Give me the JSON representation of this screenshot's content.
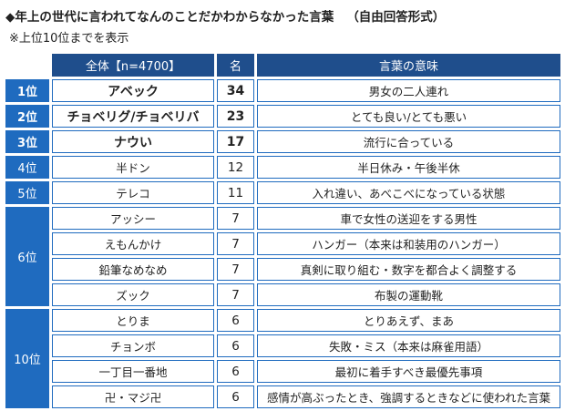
{
  "title": "◆年上の世代に言われてなんのことだかわからなかった言葉",
  "title_note": "（自由回答形式）",
  "subtitle": "※上位10位までを表示",
  "headers": {
    "word": "全体【n=4700】",
    "count": "名",
    "meaning": "言葉の意味"
  },
  "rows": [
    {
      "rank": "1位",
      "word": "アベック",
      "count": "34",
      "meaning": "男女の二人連れ"
    },
    {
      "rank": "2位",
      "word": "チョベリグ/チョベリバ",
      "count": "23",
      "meaning": "とても良い/とても悪い"
    },
    {
      "rank": "3位",
      "word": "ナウい",
      "count": "17",
      "meaning": "流行に合っている"
    },
    {
      "rank": "4位",
      "word": "半ドン",
      "count": "12",
      "meaning": "半日休み・午後半休"
    },
    {
      "rank": "5位",
      "word": "テレコ",
      "count": "11",
      "meaning": "入れ違い、あべこべになっている状態"
    }
  ],
  "groups": [
    {
      "rank": "6位",
      "rows": [
        {
          "word": "アッシー",
          "count": "7",
          "meaning": "車で女性の送迎をする男性"
        },
        {
          "word": "えもんかけ",
          "count": "7",
          "meaning": "ハンガー（本来は和装用のハンガー）"
        },
        {
          "word": "鉛筆なめなめ",
          "count": "7",
          "meaning": "真剣に取り組む・数字を都合よく調整する"
        },
        {
          "word": "ズック",
          "count": "7",
          "meaning": "布製の運動靴"
        }
      ]
    },
    {
      "rank": "10位",
      "rows": [
        {
          "word": "とりま",
          "count": "6",
          "meaning": "とりあえず、まあ"
        },
        {
          "word": "チョンボ",
          "count": "6",
          "meaning": "失敗・ミス（本来は麻雀用語）"
        },
        {
          "word": "一丁目一番地",
          "count": "6",
          "meaning": "最初に着手すべき最優先事項"
        },
        {
          "word": "卍・マジ卍",
          "count": "6",
          "meaning": "感情が高ぶったとき、強調するときなどに使われた言葉"
        }
      ]
    }
  ],
  "colors": {
    "header_bg": "#1f4e8c",
    "rank_bg": "#1f6bbf",
    "border": "#1f6bbf"
  }
}
